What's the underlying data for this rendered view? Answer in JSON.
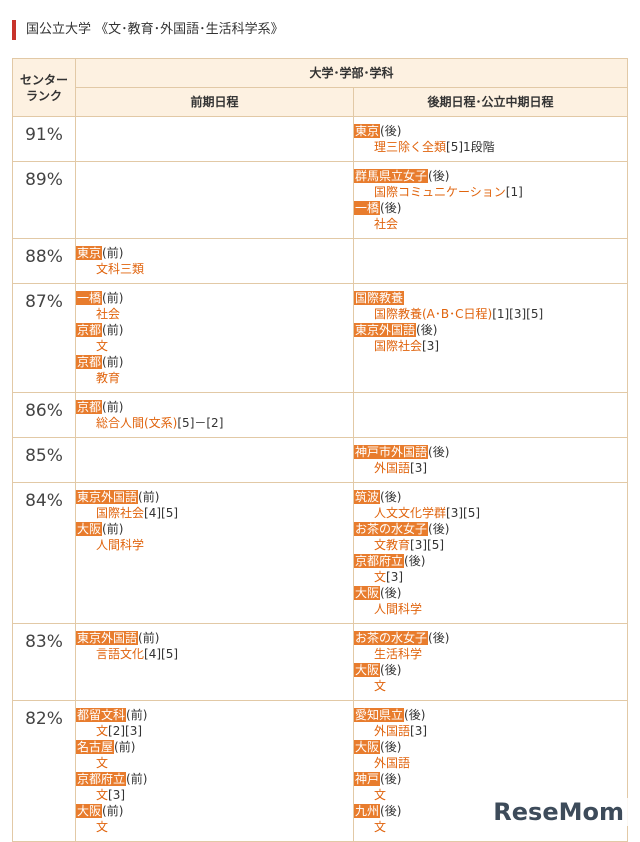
{
  "heading": "国公立大学 《文･教育･外国語･生活科学系》",
  "table": {
    "header": {
      "rank": [
        "センター",
        "ランク"
      ],
      "group": "大学･学部･学科",
      "early": "前期日程",
      "late": "後期日程･公立中期日程"
    },
    "rows": [
      {
        "rank": "91%",
        "late": [
          {
            "univ": "東京",
            "term": "(後)",
            "dept": "理三除く全類",
            "notes": "[5]1段階"
          }
        ]
      },
      {
        "rank": "89%",
        "late": [
          {
            "univ": "群馬県立女子",
            "term": "(後)",
            "dept": "国際コミュニケーション",
            "notes": "[1]"
          },
          {
            "univ": "一橋",
            "term": "(後)",
            "dept": "社会"
          }
        ]
      },
      {
        "rank": "88%",
        "early": [
          {
            "univ": "東京",
            "term": "(前)",
            "dept": "文科三類"
          }
        ]
      },
      {
        "rank": "87%",
        "early": [
          {
            "univ": "一橋",
            "term": "(前)",
            "dept": "社会"
          },
          {
            "univ": "京都",
            "term": "(前)",
            "dept": "文"
          },
          {
            "univ": "京都",
            "term": "(前)",
            "dept": "教育"
          }
        ],
        "late": [
          {
            "univ": "国際教養",
            "dept": "国際教養(A･B･C日程)",
            "notes": "[1][3][5]"
          },
          {
            "univ": "東京外国語",
            "term": "(後)",
            "dept": "国際社会",
            "notes": "[3]"
          }
        ]
      },
      {
        "rank": "86%",
        "early": [
          {
            "univ": "京都",
            "term": "(前)",
            "dept": "総合人間(文系)",
            "notes": "[5]－[2]"
          }
        ]
      },
      {
        "rank": "85%",
        "late": [
          {
            "univ": "神戸市外国語",
            "term": "(後)",
            "dept": "外国語",
            "notes": "[3]"
          }
        ]
      },
      {
        "rank": "84%",
        "early": [
          {
            "univ": "東京外国語",
            "term": "(前)",
            "dept": "国際社会",
            "notes": "[4][5]"
          },
          {
            "univ": "大阪",
            "term": "(前)",
            "dept": "人間科学"
          }
        ],
        "late": [
          {
            "univ": "筑波",
            "term": "(後)",
            "dept": "人文文化学群",
            "notes": "[3][5]"
          },
          {
            "univ": "お茶の水女子",
            "term": "(後)",
            "dept": "文教育",
            "notes": "[3][5]"
          },
          {
            "univ": "京都府立",
            "term": "(後)",
            "dept": "文",
            "notes": "[3]"
          },
          {
            "univ": "大阪",
            "term": "(後)",
            "dept": "人間科学"
          }
        ]
      },
      {
        "rank": "83%",
        "early": [
          {
            "univ": "東京外国語",
            "term": "(前)",
            "dept": "言語文化",
            "notes": "[4][5]"
          }
        ],
        "late": [
          {
            "univ": "お茶の水女子",
            "term": "(後)",
            "dept": "生活科学"
          },
          {
            "univ": "大阪",
            "term": "(後)",
            "dept": "文"
          }
        ]
      },
      {
        "rank": "82%",
        "early": [
          {
            "univ": "都留文科",
            "term": "(前)",
            "dept": "文",
            "notes": "[2][3]"
          },
          {
            "univ": "名古屋",
            "term": "(前)",
            "dept": "文"
          },
          {
            "univ": "京都府立",
            "term": "(前)",
            "dept": "文",
            "notes": "[3]"
          },
          {
            "univ": "大阪",
            "term": "(前)",
            "dept": "文"
          }
        ],
        "late": [
          {
            "univ": "愛知県立",
            "term": "(後)",
            "dept": "外国語",
            "notes": "[3]"
          },
          {
            "univ": "大阪",
            "term": "(後)",
            "dept": "外国語"
          },
          {
            "univ": "神戸",
            "term": "(後)",
            "dept": "文"
          },
          {
            "univ": "九州",
            "term": "(後)",
            "dept": "文"
          }
        ]
      }
    ]
  },
  "watermark": "ReseMom"
}
